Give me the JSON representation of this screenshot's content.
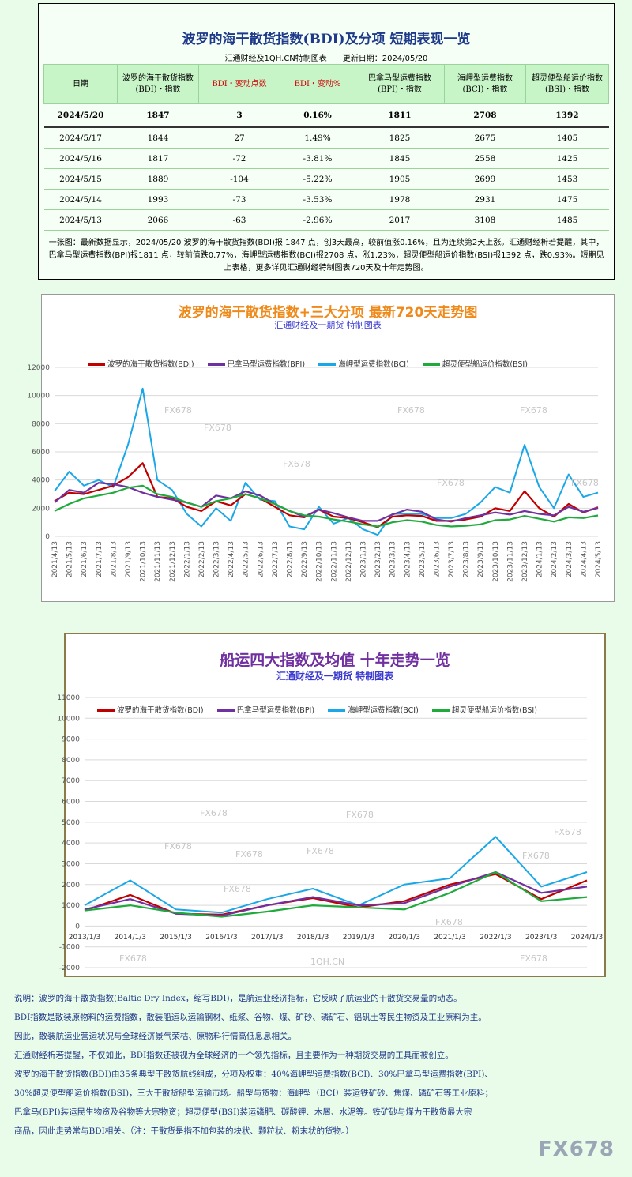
{
  "table": {
    "title": "波罗的海干散货指数(BDI)及分项 短期表现一览",
    "subtitle": "汇通财经及1QH.CN特制图表　　更新日期：2024/05/20",
    "headers": [
      "日期",
      "波罗的海干散货指数(BDI)・指数",
      "BDI・变动点数",
      "BDI・变动%",
      "巴拿马型运费指数(BPI)・指数",
      "海岬型运费指数(BCI)・指数",
      "超灵便型船运价指数(BSI)・指数"
    ],
    "rows": [
      [
        "2024/5/20",
        "1847",
        "3",
        "0.16%",
        "1811",
        "2708",
        "1392"
      ],
      [
        "2024/5/17",
        "1844",
        "27",
        "1.49%",
        "1825",
        "2675",
        "1405"
      ],
      [
        "2024/5/16",
        "1817",
        "-72",
        "-3.81%",
        "1845",
        "2558",
        "1425"
      ],
      [
        "2024/5/15",
        "1889",
        "-104",
        "-5.22%",
        "1905",
        "2699",
        "1453"
      ],
      [
        "2024/5/14",
        "1993",
        "-73",
        "-3.53%",
        "1978",
        "2931",
        "1475"
      ],
      [
        "2024/5/13",
        "2066",
        "-63",
        "-2.96%",
        "2017",
        "3108",
        "1485"
      ]
    ],
    "note": "一张图：最新数据显示，2024/05/20 波罗的海干散货指数(BDI)报 1847 点，创3天最高，较前值涨0.16%，且为连续第2天上涨。汇通财经析若提醒，其中，巴拿马型运费指数(BPI)报1811 点，较前值跌0.77%，海岬型运费指数(BCI)报2708 点，涨1.23%，超灵便型船运价指数(BSI)报1392 点，跌0.93%。短期见上表格，更多详见汇通财经特制图表720天及十年走势图。"
  },
  "chart1_text": {
    "title": "波罗的海干散货指数+三大分项 最新720天走势图",
    "subtitle": "汇通财经及一期货 特制图表"
  },
  "chart2_text": {
    "title": "船运四大指数及均值 十年走势一览",
    "subtitle": "汇通财经及一期货 特制图表"
  },
  "watermarks": {
    "fx": "FX678",
    "site": "1QH.CN"
  },
  "series_names": [
    "波罗的海干散货指数(BDI)",
    "巴拿马型运费指数(BPI)",
    "海岬型运费指数(BCI)",
    "超灵便型船运价指数(BSI)"
  ],
  "colors": {
    "BDI": "#c00000",
    "BPI": "#7030a0",
    "BCI": "#1aa7e8",
    "BSI": "#1faa3c"
  },
  "chart_data": [
    {
      "type": "line",
      "title": "波罗的海干散货指数+三大分项 最新720天走势图",
      "ylim": [
        0,
        12000
      ],
      "yticks": [
        0,
        2000,
        4000,
        6000,
        8000,
        10000,
        12000
      ],
      "grid": true,
      "legend": "top",
      "x": [
        "2021/4/13",
        "2021/5/13",
        "2021/6/13",
        "2021/7/13",
        "2021/8/13",
        "2021/9/13",
        "2021/10/13",
        "2021/11/13",
        "2021/12/13",
        "2022/1/13",
        "2022/2/13",
        "2022/3/13",
        "2022/4/13",
        "2022/5/13",
        "2022/6/13",
        "2022/7/13",
        "2022/8/13",
        "2022/9/13",
        "2022/10/13",
        "2022/11/13",
        "2022/12/13",
        "2023/1/13",
        "2023/2/13",
        "2023/3/13",
        "2023/4/13",
        "2023/5/13",
        "2023/6/13",
        "2023/7/13",
        "2023/8/13",
        "2023/9/13",
        "2023/10/13",
        "2023/11/13",
        "2023/12/13",
        "2024/1/13",
        "2024/2/13",
        "2024/3/13",
        "2024/4/13",
        "2024/5/13"
      ],
      "series": [
        {
          "name": "波罗的海干散货指数(BDI)",
          "values": [
            2500,
            3100,
            3000,
            3300,
            3600,
            4200,
            5200,
            2800,
            2700,
            2100,
            1800,
            2500,
            2200,
            3000,
            2700,
            2100,
            1500,
            1350,
            1900,
            1400,
            1300,
            1000,
            650,
            1400,
            1500,
            1450,
            1100,
            1100,
            1200,
            1400,
            2000,
            1800,
            3200,
            2000,
            1400,
            2300,
            1700,
            2066
          ]
        },
        {
          "name": "巴拿马型运费指数(BPI)",
          "values": [
            2400,
            3300,
            3100,
            3800,
            3700,
            3500,
            3100,
            2800,
            2600,
            2400,
            2100,
            2900,
            2700,
            3200,
            2900,
            2300,
            1800,
            1400,
            1900,
            1650,
            1350,
            1100,
            1100,
            1550,
            1900,
            1750,
            1200,
            1050,
            1300,
            1500,
            1700,
            1550,
            1800,
            1600,
            1500,
            2100,
            1750,
            2017
          ]
        },
        {
          "name": "海岬型运费指数(BCI)",
          "values": [
            3200,
            4600,
            3600,
            4000,
            3500,
            6500,
            10500,
            4000,
            3300,
            1600,
            700,
            2000,
            1100,
            3800,
            2600,
            2500,
            700,
            500,
            2100,
            900,
            1300,
            500,
            100,
            1600,
            1600,
            1600,
            1300,
            1300,
            1600,
            2400,
            3500,
            3100,
            6500,
            3500,
            2000,
            4400,
            2800,
            3108
          ]
        },
        {
          "name": "超灵便型船运价指数(BSI)",
          "values": [
            1800,
            2300,
            2700,
            2900,
            3100,
            3450,
            3600,
            3000,
            2800,
            2400,
            2100,
            2500,
            2700,
            3000,
            2700,
            2300,
            1800,
            1500,
            1400,
            1200,
            1050,
            850,
            700,
            1000,
            1150,
            1050,
            800,
            700,
            750,
            850,
            1150,
            1200,
            1450,
            1250,
            1050,
            1350,
            1300,
            1485
          ]
        }
      ]
    },
    {
      "type": "line",
      "title": "船运四大指数及均值 十年走势一览",
      "ylim": [
        -2000,
        11000
      ],
      "yticks": [
        -2000,
        -1000,
        0,
        1000,
        2000,
        3000,
        4000,
        5000,
        6000,
        7000,
        8000,
        9000,
        10000,
        11000
      ],
      "grid": true,
      "legend": "top",
      "x": [
        "2013/1/3",
        "2014/1/3",
        "2015/1/3",
        "2016/1/3",
        "2017/1/3",
        "2018/1/3",
        "2019/1/3",
        "2020/1/3",
        "2021/1/3",
        "2022/1/3",
        "2023/1/3",
        "2024/1/3"
      ],
      "series": [
        {
          "name": "波罗的海干散货指数(BDI)",
          "values": [
            750,
            1500,
            600,
            550,
            1000,
            1350,
            900,
            1200,
            2000,
            2500,
            1300,
            2200
          ]
        },
        {
          "name": "巴拿马型运费指数(BPI)",
          "values": [
            800,
            1300,
            600,
            500,
            1000,
            1400,
            1000,
            1100,
            1900,
            2600,
            1600,
            1900
          ]
        },
        {
          "name": "海岬型运费指数(BCI)",
          "values": [
            1000,
            2200,
            800,
            650,
            1300,
            1800,
            1000,
            2000,
            2300,
            4300,
            1900,
            2600
          ]
        },
        {
          "name": "超灵便型船运价指数(BSI)",
          "values": [
            750,
            1000,
            650,
            450,
            700,
            1000,
            900,
            800,
            1600,
            2600,
            1200,
            1400
          ]
        }
      ]
    }
  ],
  "explain": [
    "说明：波罗的海干散货指数(Baltic Dry Index，缩写BDI)，是航运业经济指标，它反映了航运业的干散货交易量的动态。",
    "BDI指数是散装原物料的运费指数，散装船运以运输钢材、纸浆、谷物、煤、矿砂、磷矿石、铝矾土等民生物资及工业原料为主。",
    "因此，散装航运业营运状况与全球经济景气荣枯、原物料行情高低息息相关。",
    "汇通财经析若提醒，不仅如此，BDI指数还被视为全球经济的一个领先指标，且主要作为一种期货交易的工具而被创立。",
    "波罗的海干散货指数(BDI)由35条典型干散货航线组成，分项及权重：40%海岬型运费指数(BCI)、30%巴拿马型运费指数(BPI)、",
    "30%超灵便型船运价指数(BSI)，三大干散货船型运输市场。船型与货物：海岬型（BCI）装运铁矿砂、焦煤、磷矿石等工业原料；",
    "巴拿马(BPI)装运民生物资及谷物等大宗物资；超灵便型(BSI)装运磷肥、碳酸钾、木屑、水泥等。铁矿砂与煤为干散货最大宗",
    "商品，因此走势常与BDI相关。（注：干散货是指不加包装的块状、颗粒状、粉末状的货物。）"
  ],
  "brand": "FX678"
}
